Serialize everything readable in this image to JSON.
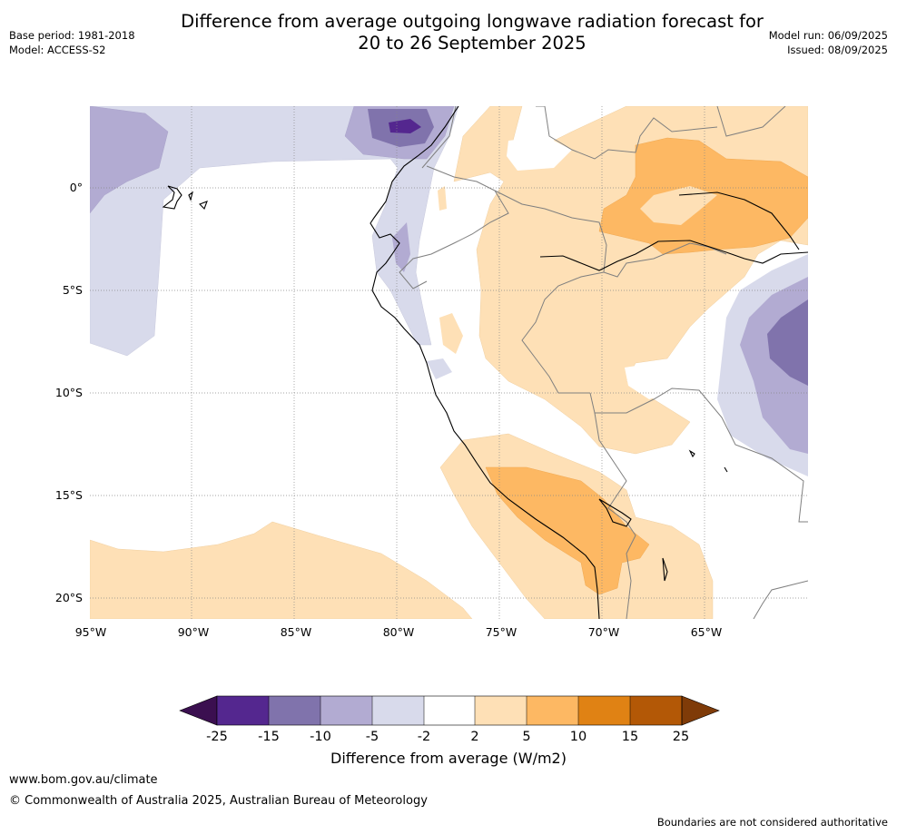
{
  "header": {
    "title_line1": "Difference from average outgoing longwave radiation forecast for",
    "title_line2": "20 to 26 September 2025",
    "base_period": "Base period: 1981-2018",
    "model": "Model: ACCESS-S2",
    "model_run": "Model run: 06/09/2025",
    "issued": "Issued: 08/09/2025"
  },
  "map": {
    "lon_labels": [
      "95°W",
      "90°W",
      "85°W",
      "80°W",
      "75°W",
      "70°W",
      "65°W"
    ],
    "lat_labels": [
      "0°",
      "5°S",
      "10°S",
      "15°S",
      "20°S"
    ],
    "colors": {
      "neg25": "#3b0f50",
      "neg15": "#54278f",
      "neg10": "#8073ac",
      "neg5": "#b2abd2",
      "neg2": "#d8daeb",
      "zero": "#ffffff",
      "pos2": "#fee0b6",
      "pos5": "#fdb863",
      "pos10": "#e08214",
      "pos15": "#b35806",
      "pos25": "#7f3b08"
    }
  },
  "colorbar": {
    "ticks": [
      "-25",
      "-15",
      "-10",
      "-5",
      "-2",
      "2",
      "5",
      "10",
      "15",
      "25"
    ],
    "label": "Difference from average (W/m2)"
  },
  "footer": {
    "url": "www.bom.gov.au/climate",
    "copyright": "© Commonwealth of Australia 2025, Australian Bureau of Meteorology",
    "note": "Boundaries are not considered authoritative"
  }
}
